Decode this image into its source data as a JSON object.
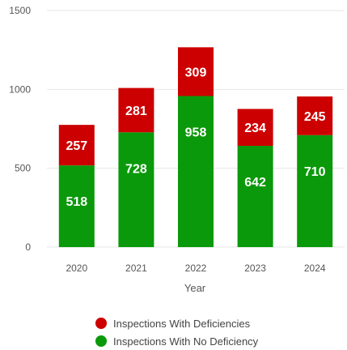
{
  "chart_data": {
    "type": "bar",
    "stacked": true,
    "categories": [
      "2020",
      "2021",
      "2022",
      "2023",
      "2024"
    ],
    "series": [
      {
        "name": "Inspections With No Deficiency",
        "color": "#0a990a",
        "values": [
          518,
          728,
          958,
          642,
          710
        ]
      },
      {
        "name": "Inspections With Deficiencies",
        "color": "#cc0000",
        "values": [
          257,
          281,
          309,
          234,
          245
        ]
      }
    ],
    "xlabel": "Year",
    "ylabel": "",
    "ylim": [
      0,
      1500
    ],
    "yticks": [
      0,
      500,
      1000,
      1500
    ],
    "grid": true,
    "legend_position": "bottom",
    "legend_order": [
      "Inspections With Deficiencies",
      "Inspections With No Deficiency"
    ]
  }
}
